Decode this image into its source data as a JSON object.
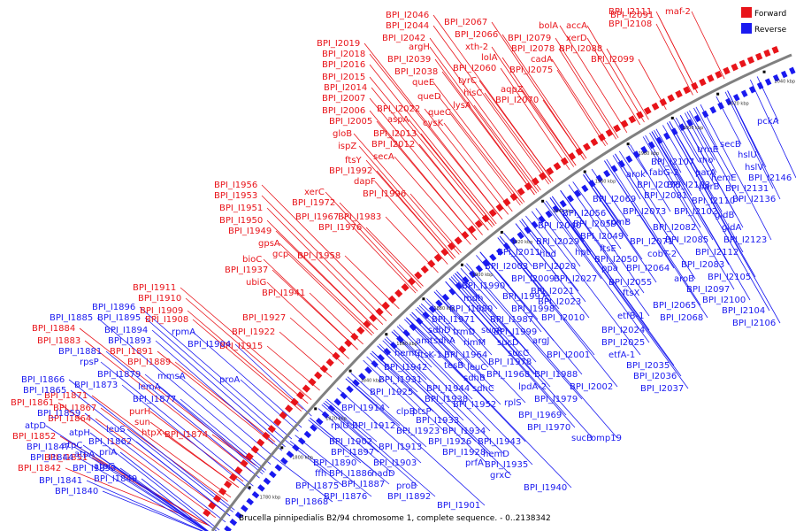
{
  "colors": {
    "forward": "#e8141a",
    "reverse": "#1a1af0",
    "backbone": "#808080",
    "text": "#000000"
  },
  "legend": {
    "forward_label": "Forward",
    "reverse_label": "Reverse"
  },
  "caption": "Brucella pinnipedialis B2/94 chromosome 1, complete sequence. - 0..2138342",
  "ticks": [
    "1780 kbp",
    "1800 kbp",
    "1820 kbp",
    "1840 kbp",
    "1860 kbp",
    "1880 kbp",
    "1900 kbp",
    "1920 kbp",
    "1940 kbp",
    "1960 kbp",
    "1980 kbp",
    "2000 kbp",
    "2020 kbp",
    "2040 kbp"
  ],
  "forward_labels": [
    [
      "BPI_I2046",
      436,
      12
    ],
    [
      "BPI_I2067",
      502,
      20
    ],
    [
      "BPI_I2091",
      690,
      12
    ],
    [
      "BPI_I2111",
      688,
      8
    ],
    [
      "maf-2",
      752,
      8
    ],
    [
      "BPI_I2044",
      436,
      24
    ],
    [
      "BPI_I2066",
      514,
      34
    ],
    [
      "bolA",
      609,
      24
    ],
    [
      "accA",
      640,
      24
    ],
    [
      "BPI_I2108",
      688,
      22
    ],
    [
      "BPI_I2042",
      432,
      38
    ],
    [
      "argH",
      462,
      48
    ],
    [
      "xth-2",
      526,
      48
    ],
    [
      "BPI_I2079",
      574,
      38
    ],
    [
      "xerD",
      640,
      38
    ],
    [
      "BPI_I2019",
      358,
      44
    ],
    [
      "BPI_I2018",
      364,
      56
    ],
    [
      "BPI_I2039",
      438,
      62
    ],
    [
      "lolA",
      544,
      60
    ],
    [
      "BPI_I2078",
      578,
      50
    ],
    [
      "BPI_I2088",
      632,
      50
    ],
    [
      "BPI_I2016",
      364,
      68
    ],
    [
      "BPI_I2038",
      446,
      76
    ],
    [
      "BPI_I2060",
      512,
      72
    ],
    [
      "cadA",
      600,
      62
    ],
    [
      "BPI_I2099",
      668,
      62
    ],
    [
      "BPI_I2015",
      364,
      82
    ],
    [
      "queE",
      466,
      88
    ],
    [
      "tyrC",
      518,
      86
    ],
    [
      "aqpZ",
      566,
      96
    ],
    [
      "BPI_I2075",
      576,
      74
    ],
    [
      "BPI_I2014",
      366,
      94
    ],
    [
      "queD",
      472,
      104
    ],
    [
      "hisC",
      524,
      100
    ],
    [
      "BPI_I2070",
      560,
      108
    ],
    [
      "BPI_I2007",
      364,
      106
    ],
    [
      "BPI_I2022",
      426,
      118
    ],
    [
      "lysA",
      512,
      114
    ],
    [
      "queC",
      484,
      122
    ],
    [
      "BPI_I2006",
      364,
      120
    ],
    [
      "aspA",
      438,
      130
    ],
    [
      "cysK",
      478,
      134
    ],
    [
      "BPI_I2005",
      372,
      132
    ],
    [
      "BPI_I2013",
      422,
      146
    ],
    [
      "gloB",
      376,
      146
    ],
    [
      "BPI_I2012",
      420,
      158
    ],
    [
      "ispZ",
      382,
      160
    ],
    [
      "secA",
      422,
      172
    ],
    [
      "ftsY",
      390,
      176
    ],
    [
      "BPI_I1992",
      372,
      188
    ],
    [
      "dapF",
      400,
      200
    ],
    [
      "BPI_I1956",
      242,
      204
    ],
    [
      "BPI_I1996",
      410,
      214
    ],
    [
      "BPI_I1953",
      242,
      216
    ],
    [
      "xerC",
      344,
      212
    ],
    [
      "BPI_I1972",
      330,
      224
    ],
    [
      "BPI_I1951",
      248,
      230
    ],
    [
      "BPI_I1967",
      334,
      240
    ],
    [
      "BPI_I1983",
      382,
      240
    ],
    [
      "BPI_I1950",
      248,
      244
    ],
    [
      "BPI_I1976",
      360,
      252
    ],
    [
      "BPI_I1949",
      258,
      256
    ],
    [
      "gpsA",
      292,
      270
    ],
    [
      "gcp",
      308,
      282
    ],
    [
      "BPI_I1958",
      336,
      284
    ],
    [
      "bioC",
      274,
      288
    ],
    [
      "BPI_I1937",
      254,
      300
    ],
    [
      "ubiG",
      278,
      314
    ],
    [
      "BPI_I1941",
      296,
      326
    ],
    [
      "BPI_I1911",
      150,
      320
    ],
    [
      "BPI_I1910",
      156,
      332
    ],
    [
      "BPI_I1909",
      158,
      346
    ],
    [
      "BPI_I1908",
      164,
      356
    ],
    [
      "BPI_I1927",
      274,
      354
    ],
    [
      "BPI_I1922",
      262,
      370
    ],
    [
      "BPI_I1915",
      248,
      386
    ],
    [
      "BPI_I1884",
      36,
      366
    ],
    [
      "BPI_I1883",
      42,
      380
    ],
    [
      "BPI_I1891",
      124,
      392
    ],
    [
      "BPI_I1889",
      144,
      404
    ],
    [
      "BPI_I1871",
      50,
      442
    ],
    [
      "BPI_I1861",
      12,
      450
    ],
    [
      "BPI_I1867",
      60,
      456
    ],
    [
      "purH",
      146,
      460
    ],
    [
      "sun",
      152,
      472
    ],
    [
      "BPI_I1864",
      54,
      468
    ],
    [
      "htpX",
      160,
      484
    ],
    [
      "BPI_I1874",
      186,
      486
    ],
    [
      "BPI_I1852",
      14,
      488
    ],
    [
      "BPI_I1851",
      50,
      512
    ],
    [
      "BPI_I1842",
      20,
      524
    ]
  ],
  "reverse_labels": [
    [
      "pckA",
      856,
      132
    ],
    [
      "secB",
      814,
      158
    ],
    [
      "hslU",
      834,
      170
    ],
    [
      "trmE",
      788,
      164
    ],
    [
      "rho",
      790,
      176
    ],
    [
      "hslV",
      842,
      184
    ],
    [
      "parA",
      786,
      190
    ],
    [
      "BPI_I2146",
      846,
      196
    ],
    [
      "BPI_I2107",
      736,
      178
    ],
    [
      "arok",
      708,
      192
    ],
    [
      "fabG-2",
      734,
      190
    ],
    [
      "hemE",
      804,
      196
    ],
    [
      "parB",
      790,
      206
    ],
    [
      "BPI_I2076",
      720,
      204
    ],
    [
      "BPI_I2103",
      754,
      204
    ],
    [
      "BPI_I2131",
      820,
      208
    ],
    [
      "BPI_I2069",
      670,
      220
    ],
    [
      "BPI_I2081",
      728,
      216
    ],
    [
      "BPI_I2110",
      782,
      222
    ],
    [
      "BPI_I2136",
      828,
      220
    ],
    [
      "BPI_I2056",
      636,
      236
    ],
    [
      "BPI_I2073",
      704,
      234
    ],
    [
      "BPI_I2102",
      762,
      234
    ],
    [
      "gidB",
      808,
      238
    ],
    [
      "rpmB",
      686,
      246
    ],
    [
      "BPI_I2040",
      608,
      250
    ],
    [
      "BPI_I2059",
      648,
      248
    ],
    [
      "BPI_I2082",
      738,
      252
    ],
    [
      "gidA",
      816,
      252
    ],
    [
      "BPI_I2029",
      606,
      268
    ],
    [
      "BPI_I2049",
      656,
      262
    ],
    [
      "BPI_I2071",
      712,
      268
    ],
    [
      "BPI_I2085",
      752,
      266
    ],
    [
      "BPI_I2123",
      818,
      266
    ],
    [
      "BPI_I2011",
      562,
      280
    ],
    [
      "hbd",
      610,
      282
    ],
    [
      "hpt",
      650,
      280
    ],
    [
      "ftsE",
      678,
      276
    ],
    [
      "cobT-2",
      732,
      282
    ],
    [
      "BPI_I2112",
      786,
      280
    ],
    [
      "BPI_I2003",
      548,
      296
    ],
    [
      "BPI_I2020",
      602,
      296
    ],
    [
      "BPI_I2050",
      672,
      288
    ],
    [
      "ppa",
      680,
      298
    ],
    [
      "BPI_I2083",
      770,
      294
    ],
    [
      "BPI_I2009",
      578,
      310
    ],
    [
      "BPI_I2027",
      626,
      310
    ],
    [
      "BPI_I2064",
      708,
      298
    ],
    [
      "aroB",
      762,
      310
    ],
    [
      "BPI_I2105",
      800,
      308
    ],
    [
      "BPI_I2021",
      600,
      324
    ],
    [
      "BPI_I2055",
      688,
      314
    ],
    [
      "BPI_I2097",
      776,
      322
    ],
    [
      "BPI_I1990",
      522,
      318
    ],
    [
      "mdh",
      524,
      332
    ],
    [
      "BPI_I1997",
      568,
      330
    ],
    [
      "BPI_I2023",
      608,
      336
    ],
    [
      "ftsX",
      704,
      326
    ],
    [
      "BPI_I2100",
      794,
      334
    ],
    [
      "BPI_I1980",
      508,
      344
    ],
    [
      "BPI_I1998",
      578,
      344
    ],
    [
      "BPI_I2065",
      738,
      340
    ],
    [
      "BPI_I2104",
      816,
      346
    ],
    [
      "BPI_I1971",
      488,
      356
    ],
    [
      "BPI_I1987",
      554,
      356
    ],
    [
      "BPI_I2010",
      612,
      354
    ],
    [
      "etfB-1",
      698,
      352
    ],
    [
      "BPI_I2068",
      746,
      354
    ],
    [
      "BPI_I2106",
      828,
      360
    ],
    [
      "sdhD",
      484,
      368
    ],
    [
      "trmD",
      512,
      370
    ],
    [
      "sucA",
      544,
      368
    ],
    [
      "BPI_I1999",
      558,
      370
    ],
    [
      "BPI_I2024",
      680,
      368
    ],
    [
      "amt",
      470,
      380
    ],
    [
      "sdhA",
      490,
      380
    ],
    [
      "rimM",
      524,
      382
    ],
    [
      "sucD",
      562,
      382
    ],
    [
      "argJ",
      602,
      380
    ],
    [
      "BPI_I2025",
      680,
      382
    ],
    [
      "hemC",
      446,
      394
    ],
    [
      "ftsK-1",
      472,
      396
    ],
    [
      "BPI_I1964",
      502,
      396
    ],
    [
      "sucC",
      574,
      394
    ],
    [
      "BPI_I2001",
      618,
      396
    ],
    [
      "etfA-1",
      688,
      396
    ],
    [
      "BPI_I1942",
      434,
      410
    ],
    [
      "tesB",
      502,
      408
    ],
    [
      "leuC",
      528,
      410
    ],
    [
      "BPI_I1978",
      552,
      404
    ],
    [
      "BPI_I2035",
      708,
      408
    ],
    [
      "sdhB",
      524,
      422
    ],
    [
      "BPI_I1968",
      550,
      418
    ],
    [
      "BPI_I1988",
      604,
      418
    ],
    [
      "BPI_I2036",
      716,
      420
    ],
    [
      "BPI_I1931",
      428,
      424
    ],
    [
      "sdhC",
      534,
      434
    ],
    [
      "lpdA-2",
      586,
      432
    ],
    [
      "BPI_I2002",
      644,
      432
    ],
    [
      "BPI_I2037",
      724,
      434
    ],
    [
      "BPI_I1925",
      418,
      438
    ],
    [
      "BPI_I1944",
      482,
      434
    ],
    [
      "BPI_I1938",
      480,
      446
    ],
    [
      "BPI_I1952",
      512,
      452
    ],
    [
      "rplS",
      570,
      450
    ],
    [
      "BPI_I1979",
      604,
      446
    ],
    [
      "BPI_I1914",
      386,
      456
    ],
    [
      "clpB",
      448,
      460
    ],
    [
      "ptsP",
      466,
      460
    ],
    [
      "BPI_I1969",
      586,
      464
    ],
    [
      "BPI_I1933",
      470,
      470
    ],
    [
      "BPI_I1970",
      596,
      478
    ],
    [
      "rplU",
      374,
      476
    ],
    [
      "BPI_I1912",
      398,
      476
    ],
    [
      "BPI_I1923",
      448,
      482
    ],
    [
      "BPI_I1934",
      500,
      482
    ],
    [
      "sucB",
      646,
      490
    ],
    [
      "omp19",
      668,
      490
    ],
    [
      "BPI_I1902",
      372,
      494
    ],
    [
      "BPI_I1926",
      484,
      494
    ],
    [
      "BPI_I1943",
      540,
      494
    ],
    [
      "BPI_I1913",
      428,
      500
    ],
    [
      "BPI_I1897",
      374,
      506
    ],
    [
      "BPI_I1928",
      500,
      506
    ],
    [
      "hemD",
      546,
      508
    ],
    [
      "BPI_I1890",
      354,
      518
    ],
    [
      "BPI_I1903",
      422,
      518
    ],
    [
      "prfA",
      526,
      518
    ],
    [
      "BPI_I1935",
      548,
      520
    ],
    [
      "ffh",
      356,
      530
    ],
    [
      "BPI_I1886",
      372,
      530
    ],
    [
      "nadD",
      420,
      530
    ],
    [
      "grxC",
      554,
      532
    ],
    [
      "BPI_I1875",
      334,
      544
    ],
    [
      "BPI_I1887",
      386,
      542
    ],
    [
      "proB",
      448,
      544
    ],
    [
      "BPI_I1940",
      592,
      546
    ],
    [
      "BPI_I1876",
      366,
      556
    ],
    [
      "BPI_I1892",
      438,
      556
    ],
    [
      "BPI_I1868",
      322,
      562
    ],
    [
      "BPI_I1901",
      494,
      566
    ],
    [
      "BPI_I1896",
      104,
      342
    ],
    [
      "BPI_I1885",
      56,
      354
    ],
    [
      "BPI_I1895",
      110,
      354
    ],
    [
      "rpmA",
      194,
      370
    ],
    [
      "BPI_I1894",
      118,
      368
    ],
    [
      "BPI_I1893",
      122,
      380
    ],
    [
      "BPI_I1904",
      212,
      384
    ],
    [
      "BPI_I1881",
      66,
      392
    ],
    [
      "rpsP",
      90,
      404
    ],
    [
      "BPI_I1879",
      110,
      418
    ],
    [
      "mmsA",
      178,
      420
    ],
    [
      "proA",
      248,
      424
    ],
    [
      "BPI_I1866",
      24,
      424
    ],
    [
      "BPI_I1873",
      84,
      430
    ],
    [
      "BPI_I1865",
      26,
      436
    ],
    [
      "lemA",
      156,
      432
    ],
    [
      "BPI_I1877",
      150,
      446
    ],
    [
      "BPI_I1859",
      42,
      462
    ],
    [
      "atpD",
      28,
      476
    ],
    [
      "leuS",
      120,
      480
    ],
    [
      "atpH",
      78,
      484
    ],
    [
      "BPI_I1862",
      100,
      494
    ],
    [
      "BPI_I1847",
      30,
      500
    ],
    [
      "atpC",
      70,
      498
    ],
    [
      "atpA",
      84,
      508
    ],
    [
      "priA",
      112,
      506
    ],
    [
      "BPI_I1844",
      34,
      512
    ],
    [
      "atpG",
      106,
      522
    ],
    [
      "BPI_I1850",
      82,
      524
    ],
    [
      "BPI_I1849",
      106,
      536
    ],
    [
      "BPI_I1841",
      44,
      538
    ],
    [
      "BPI_I1840",
      62,
      550
    ]
  ]
}
